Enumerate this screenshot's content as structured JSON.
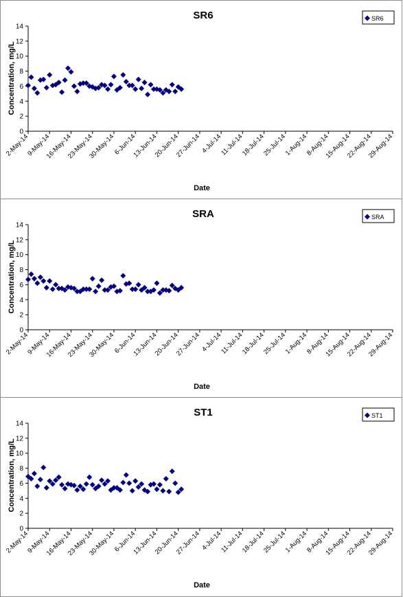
{
  "chart_data": [
    {
      "type": "scatter",
      "title": "SR6",
      "xlabel": "Date",
      "ylabel": "Concentration, mg/L",
      "ylim": [
        0,
        14
      ],
      "yticks": [
        "0",
        "2",
        "4",
        "6",
        "8",
        "10",
        "12",
        "14"
      ],
      "xlim": [
        "2014-05-02",
        "2014-08-29"
      ],
      "xticks": [
        "2-May-14",
        "9-May-14",
        "16-May-14",
        "23-May-14",
        "30-May-14",
        "6-Jun-14",
        "13-Jun-14",
        "20-Jun-14",
        "27-Jun-14",
        "4-Jul-14",
        "11-Jul-14",
        "18-Jul-14",
        "25-Jul-14",
        "1-Aug-14",
        "8-Aug-14",
        "15-Aug-14",
        "22-Aug-14",
        "29-Aug-14"
      ],
      "legend": {
        "position": "top-right",
        "entries": [
          "SR6"
        ]
      },
      "grid": false,
      "marker_color": "#000080",
      "series": [
        {
          "name": "SR6",
          "points": [
            [
              "2014-05-02",
              6.1
            ],
            [
              "2014-05-03",
              7.2
            ],
            [
              "2014-05-04",
              5.7
            ],
            [
              "2014-05-05",
              5.1
            ],
            [
              "2014-05-06",
              6.8
            ],
            [
              "2014-05-07",
              6.9
            ],
            [
              "2014-05-08",
              5.8
            ],
            [
              "2014-05-09",
              7.5
            ],
            [
              "2014-05-10",
              6.1
            ],
            [
              "2014-05-11",
              6.2
            ],
            [
              "2014-05-12",
              6.5
            ],
            [
              "2014-05-13",
              5.2
            ],
            [
              "2014-05-14",
              6.8
            ],
            [
              "2014-05-15",
              8.4
            ],
            [
              "2014-05-16",
              7.9
            ],
            [
              "2014-05-17",
              6.0
            ],
            [
              "2014-05-18",
              5.3
            ],
            [
              "2014-05-19",
              6.3
            ],
            [
              "2014-05-20",
              6.4
            ],
            [
              "2014-05-21",
              6.4
            ],
            [
              "2014-05-22",
              6.0
            ],
            [
              "2014-05-23",
              5.9
            ],
            [
              "2014-05-24",
              5.7
            ],
            [
              "2014-05-25",
              5.8
            ],
            [
              "2014-05-26",
              6.2
            ],
            [
              "2014-05-27",
              6.1
            ],
            [
              "2014-05-28",
              5.6
            ],
            [
              "2014-05-29",
              6.2
            ],
            [
              "2014-05-30",
              7.3
            ],
            [
              "2014-05-31",
              5.5
            ],
            [
              "2014-06-01",
              5.8
            ],
            [
              "2014-06-02",
              7.5
            ],
            [
              "2014-06-03",
              6.6
            ],
            [
              "2014-06-04",
              6.1
            ],
            [
              "2014-06-05",
              6.1
            ],
            [
              "2014-06-06",
              5.6
            ],
            [
              "2014-06-07",
              6.9
            ],
            [
              "2014-06-08",
              5.7
            ],
            [
              "2014-06-09",
              6.5
            ],
            [
              "2014-06-10",
              4.9
            ],
            [
              "2014-06-11",
              6.2
            ],
            [
              "2014-06-12",
              5.6
            ],
            [
              "2014-06-13",
              5.6
            ],
            [
              "2014-06-14",
              5.5
            ],
            [
              "2014-06-15",
              5.1
            ],
            [
              "2014-06-16",
              5.5
            ],
            [
              "2014-06-17",
              5.3
            ],
            [
              "2014-06-18",
              6.2
            ],
            [
              "2014-06-19",
              5.3
            ],
            [
              "2014-06-20",
              5.9
            ],
            [
              "2014-06-21",
              5.6
            ]
          ]
        }
      ]
    },
    {
      "type": "scatter",
      "title": "SRA",
      "xlabel": "Date",
      "ylabel": "Concentration, mg/L",
      "ylim": [
        0,
        14
      ],
      "yticks": [
        "0",
        "2",
        "4",
        "6",
        "8",
        "10",
        "12",
        "14"
      ],
      "xlim": [
        "2014-05-02",
        "2014-08-29"
      ],
      "xticks": [
        "2-May-14",
        "9-May-14",
        "16-May-14",
        "23-May-14",
        "30-May-14",
        "6-Jun-14",
        "13-Jun-14",
        "20-Jun-14",
        "27-Jun-14",
        "4-Jul-14",
        "11-Jul-14",
        "18-Jul-14",
        "25-Jul-14",
        "1-Aug-14",
        "8-Aug-14",
        "15-Aug-14",
        "22-Aug-14",
        "29-Aug-14"
      ],
      "legend": {
        "position": "top-right",
        "entries": [
          "SRA"
        ]
      },
      "grid": false,
      "marker_color": "#000080",
      "series": [
        {
          "name": "SRA",
          "points": [
            [
              "2014-05-02",
              6.7
            ],
            [
              "2014-05-03",
              7.4
            ],
            [
              "2014-05-04",
              6.8
            ],
            [
              "2014-05-05",
              6.2
            ],
            [
              "2014-05-06",
              7.0
            ],
            [
              "2014-05-07",
              6.5
            ],
            [
              "2014-05-08",
              5.6
            ],
            [
              "2014-05-09",
              6.5
            ],
            [
              "2014-05-10",
              5.4
            ],
            [
              "2014-05-11",
              6.0
            ],
            [
              "2014-05-12",
              5.5
            ],
            [
              "2014-05-13",
              5.5
            ],
            [
              "2014-05-14",
              5.3
            ],
            [
              "2014-05-15",
              5.7
            ],
            [
              "2014-05-16",
              5.6
            ],
            [
              "2014-05-17",
              5.5
            ],
            [
              "2014-05-18",
              5.1
            ],
            [
              "2014-05-19",
              5.1
            ],
            [
              "2014-05-20",
              5.4
            ],
            [
              "2014-05-21",
              5.4
            ],
            [
              "2014-05-22",
              5.4
            ],
            [
              "2014-05-23",
              6.8
            ],
            [
              "2014-05-24",
              5.1
            ],
            [
              "2014-05-25",
              5.8
            ],
            [
              "2014-05-26",
              6.6
            ],
            [
              "2014-05-27",
              5.3
            ],
            [
              "2014-05-28",
              5.3
            ],
            [
              "2014-05-29",
              5.7
            ],
            [
              "2014-05-30",
              5.8
            ],
            [
              "2014-05-31",
              5.1
            ],
            [
              "2014-06-01",
              5.2
            ],
            [
              "2014-06-02",
              7.2
            ],
            [
              "2014-06-03",
              6.1
            ],
            [
              "2014-06-04",
              6.2
            ],
            [
              "2014-06-05",
              5.4
            ],
            [
              "2014-06-06",
              5.4
            ],
            [
              "2014-06-07",
              6.0
            ],
            [
              "2014-06-08",
              5.3
            ],
            [
              "2014-06-09",
              5.6
            ],
            [
              "2014-06-10",
              5.1
            ],
            [
              "2014-06-11",
              5.1
            ],
            [
              "2014-06-12",
              5.3
            ],
            [
              "2014-06-13",
              6.2
            ],
            [
              "2014-06-14",
              4.9
            ],
            [
              "2014-06-15",
              5.3
            ],
            [
              "2014-06-16",
              5.3
            ],
            [
              "2014-06-17",
              5.2
            ],
            [
              "2014-06-18",
              5.9
            ],
            [
              "2014-06-19",
              5.5
            ],
            [
              "2014-06-20",
              5.3
            ],
            [
              "2014-06-21",
              5.6
            ]
          ]
        }
      ]
    },
    {
      "type": "scatter",
      "title": "ST1",
      "xlabel": "Date",
      "ylabel": "Concentration, mg/L",
      "ylim": [
        0,
        14
      ],
      "yticks": [
        "0",
        "2",
        "4",
        "6",
        "8",
        "10",
        "12",
        "14"
      ],
      "xlim": [
        "2014-05-02",
        "2014-08-29"
      ],
      "xticks": [
        "2-May-14",
        "9-May-14",
        "16-May-14",
        "23-May-14",
        "30-May-14",
        "6-Jun-14",
        "13-Jun-14",
        "20-Jun-14",
        "27-Jun-14",
        "4-Jul-14",
        "11-Jul-14",
        "18-Jul-14",
        "25-Jul-14",
        "1-Aug-14",
        "8-Aug-14",
        "15-Aug-14",
        "22-Aug-14",
        "29-Aug-14"
      ],
      "legend": {
        "position": "top-right",
        "entries": [
          "ST1"
        ]
      },
      "grid": false,
      "marker_color": "#000080",
      "series": [
        {
          "name": "ST1",
          "points": [
            [
              "2014-05-02",
              6.9
            ],
            [
              "2014-05-03",
              6.6
            ],
            [
              "2014-05-04",
              7.3
            ],
            [
              "2014-05-05",
              5.6
            ],
            [
              "2014-05-06",
              6.5
            ],
            [
              "2014-05-07",
              8.1
            ],
            [
              "2014-05-08",
              5.4
            ],
            [
              "2014-05-09",
              6.3
            ],
            [
              "2014-05-10",
              5.9
            ],
            [
              "2014-05-11",
              6.4
            ],
            [
              "2014-05-12",
              6.8
            ],
            [
              "2014-05-13",
              5.8
            ],
            [
              "2014-05-14",
              5.3
            ],
            [
              "2014-05-15",
              5.9
            ],
            [
              "2014-05-16",
              5.8
            ],
            [
              "2014-05-17",
              5.7
            ],
            [
              "2014-05-18",
              5.1
            ],
            [
              "2014-05-19",
              5.6
            ],
            [
              "2014-05-20",
              5.2
            ],
            [
              "2014-05-21",
              5.9
            ],
            [
              "2014-05-22",
              6.8
            ],
            [
              "2014-05-23",
              5.8
            ],
            [
              "2014-05-24",
              5.3
            ],
            [
              "2014-05-25",
              5.6
            ],
            [
              "2014-05-26",
              6.4
            ],
            [
              "2014-05-27",
              5.9
            ],
            [
              "2014-05-28",
              6.3
            ],
            [
              "2014-05-29",
              5.1
            ],
            [
              "2014-05-30",
              5.4
            ],
            [
              "2014-05-31",
              5.4
            ],
            [
              "2014-06-01",
              5.1
            ],
            [
              "2014-06-02",
              6.1
            ],
            [
              "2014-06-03",
              7.1
            ],
            [
              "2014-06-04",
              6.0
            ],
            [
              "2014-06-05",
              5.0
            ],
            [
              "2014-06-06",
              6.3
            ],
            [
              "2014-06-07",
              5.5
            ],
            [
              "2014-06-08",
              5.9
            ],
            [
              "2014-06-09",
              5.1
            ],
            [
              "2014-06-10",
              4.9
            ],
            [
              "2014-06-11",
              5.8
            ],
            [
              "2014-06-12",
              5.9
            ],
            [
              "2014-06-13",
              5.2
            ],
            [
              "2014-06-14",
              5.8
            ],
            [
              "2014-06-15",
              5.0
            ],
            [
              "2014-06-16",
              6.6
            ],
            [
              "2014-06-17",
              4.9
            ],
            [
              "2014-06-18",
              7.6
            ],
            [
              "2014-06-19",
              6.0
            ],
            [
              "2014-06-20",
              4.8
            ],
            [
              "2014-06-21",
              5.2
            ]
          ]
        }
      ]
    }
  ]
}
